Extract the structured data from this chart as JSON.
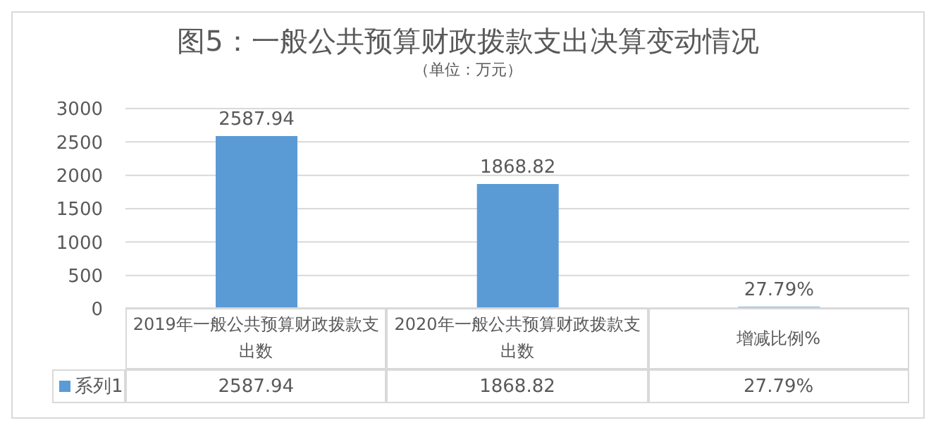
{
  "chart_data": {
    "type": "bar",
    "title": "图5：一般公共预算财政拨款支出决算变动情况",
    "subtitle": "（单位：万元）",
    "categories": [
      "2019年一般公共预算财政拨款支出数",
      "2020年一般公共预算财政拨款支出数",
      "增减比例%"
    ],
    "series": [
      {
        "name": "系列1",
        "color": "#5b9bd5",
        "values": [
          2587.94,
          1868.82,
          27.79
        ],
        "value_labels": [
          "2587.94",
          "1868.82",
          "27.79%"
        ]
      }
    ],
    "ylim": [
      0,
      3000
    ],
    "yticks": [
      0,
      500,
      1000,
      1500,
      2000,
      2500,
      3000
    ],
    "grid": "y",
    "legend": "bottom"
  }
}
